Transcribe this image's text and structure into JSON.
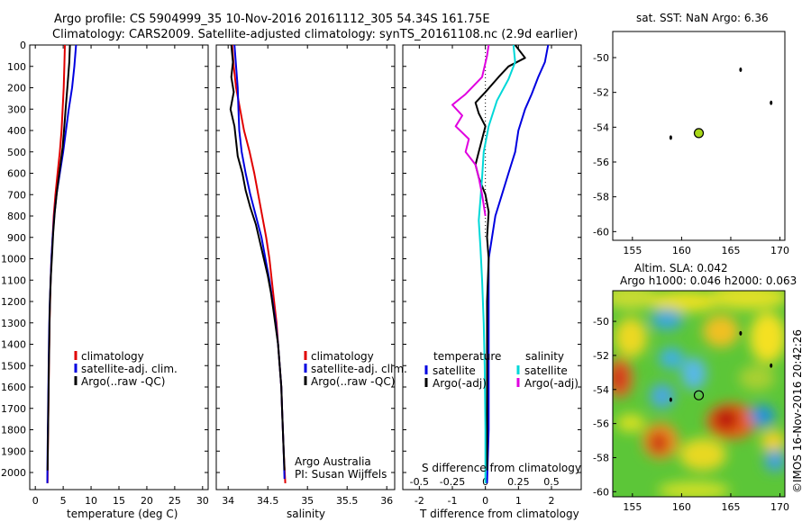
{
  "header": {
    "title_line1": "Argo profile: CS 5904999_35 10-Nov-2016 20161112_305 54.34S 161.75E",
    "title_line2": "Climatology: CARS2009. Satellite-adjusted climatology: synTS_20161108.nc (2.9d earlier)"
  },
  "credit": "©IMOS 16-Nov-2016 20:42:26",
  "colors": {
    "clim": "#e00000",
    "sat": "#0000e0",
    "argo": "#000000",
    "sat_s": "#00d8d8",
    "argo_s": "#e000e0",
    "marker": "#a8d818"
  },
  "chart_data": [
    {
      "type": "line",
      "xlabel": "temperature (deg C)",
      "ylabel": "",
      "xlim": [
        -1,
        31
      ],
      "ylim": [
        2080,
        0
      ],
      "xticks": [
        "0",
        "5",
        "10",
        "15",
        "20",
        "25",
        "30"
      ],
      "yticks": [
        "0",
        "100",
        "200",
        "300",
        "400",
        "500",
        "600",
        "700",
        "800",
        "900",
        "1000",
        "1100",
        "1200",
        "1300",
        "1400",
        "1500",
        "1600",
        "1700",
        "1800",
        "1900",
        "2000"
      ],
      "legend": [
        "climatology",
        "satellite-adj. clim.",
        "Argo(..raw -QC)"
      ],
      "series": [
        {
          "name": "climatology",
          "color": "#e00000",
          "points": [
            [
              5.3,
              0
            ],
            [
              5.2,
              100
            ],
            [
              5.1,
              200
            ],
            [
              4.9,
              300
            ],
            [
              4.7,
              400
            ],
            [
              4.4,
              500
            ],
            [
              4.0,
              600
            ],
            [
              3.6,
              700
            ],
            [
              3.3,
              800
            ],
            [
              3.1,
              900
            ],
            [
              2.9,
              1000
            ],
            [
              2.75,
              1100
            ],
            [
              2.65,
              1200
            ],
            [
              2.55,
              1300
            ],
            [
              2.5,
              1400
            ],
            [
              2.45,
              1500
            ],
            [
              2.4,
              1600
            ],
            [
              2.35,
              1700
            ],
            [
              2.3,
              1800
            ],
            [
              2.25,
              1900
            ],
            [
              2.2,
              2050
            ]
          ]
        },
        {
          "name": "satellite-adj. clim.",
          "color": "#0000e0",
          "points": [
            [
              7.3,
              0
            ],
            [
              7.0,
              100
            ],
            [
              6.6,
              200
            ],
            [
              6.0,
              300
            ],
            [
              5.5,
              400
            ],
            [
              5.0,
              500
            ],
            [
              4.4,
              600
            ],
            [
              3.8,
              700
            ],
            [
              3.4,
              800
            ],
            [
              3.1,
              900
            ],
            [
              2.9,
              1000
            ],
            [
              2.75,
              1100
            ],
            [
              2.6,
              1200
            ],
            [
              2.5,
              1300
            ],
            [
              2.45,
              1400
            ],
            [
              2.4,
              1500
            ],
            [
              2.35,
              1600
            ],
            [
              2.3,
              1700
            ],
            [
              2.25,
              1800
            ],
            [
              2.2,
              1900
            ],
            [
              2.15,
              2050
            ]
          ]
        },
        {
          "name": "Argo(..raw -QC)",
          "color": "#000000",
          "points": [
            [
              6.2,
              0
            ],
            [
              6.1,
              80
            ],
            [
              5.8,
              180
            ],
            [
              5.5,
              280
            ],
            [
              5.2,
              380
            ],
            [
              4.9,
              480
            ],
            [
              4.4,
              580
            ],
            [
              3.9,
              680
            ],
            [
              3.5,
              780
            ],
            [
              3.2,
              880
            ],
            [
              3.0,
              980
            ],
            [
              2.8,
              1080
            ],
            [
              2.65,
              1180
            ],
            [
              2.55,
              1280
            ],
            [
              2.5,
              1380
            ],
            [
              2.45,
              1480
            ],
            [
              2.4,
              1580
            ],
            [
              2.35,
              1680
            ],
            [
              2.3,
              1780
            ],
            [
              2.25,
              1880
            ],
            [
              2.2,
              1990
            ]
          ]
        }
      ]
    },
    {
      "type": "line",
      "xlabel": "salinity",
      "xlim": [
        33.85,
        36.1
      ],
      "ylim": [
        2080,
        0
      ],
      "xticks": [
        "34",
        "34.5",
        "35",
        "35.5",
        "36"
      ],
      "legend": [
        "climatology",
        "satellite-adj. clim.",
        "Argo(..raw -QC)"
      ],
      "annotation": [
        "Argo Australia",
        "PI: Susan Wijffels"
      ],
      "series": [
        {
          "name": "climatology",
          "color": "#e00000",
          "points": [
            [
              34.05,
              0
            ],
            [
              34.07,
              100
            ],
            [
              34.1,
              200
            ],
            [
              34.15,
              300
            ],
            [
              34.2,
              400
            ],
            [
              34.27,
              500
            ],
            [
              34.33,
              600
            ],
            [
              34.38,
              700
            ],
            [
              34.43,
              800
            ],
            [
              34.48,
              900
            ],
            [
              34.52,
              1000
            ],
            [
              34.55,
              1100
            ],
            [
              34.58,
              1200
            ],
            [
              34.61,
              1300
            ],
            [
              34.63,
              1400
            ],
            [
              34.65,
              1500
            ],
            [
              34.67,
              1600
            ],
            [
              34.68,
              1700
            ],
            [
              34.69,
              1800
            ],
            [
              34.7,
              1900
            ],
            [
              34.72,
              2050
            ]
          ]
        },
        {
          "name": "satellite-adj. clim.",
          "color": "#0000e0",
          "points": [
            [
              34.08,
              0
            ],
            [
              34.1,
              100
            ],
            [
              34.12,
              200
            ],
            [
              34.13,
              300
            ],
            [
              34.14,
              400
            ],
            [
              34.17,
              500
            ],
            [
              34.22,
              600
            ],
            [
              34.28,
              700
            ],
            [
              34.35,
              800
            ],
            [
              34.42,
              900
            ],
            [
              34.47,
              1000
            ],
            [
              34.52,
              1100
            ],
            [
              34.56,
              1200
            ],
            [
              34.6,
              1300
            ],
            [
              34.63,
              1400
            ],
            [
              34.65,
              1500
            ],
            [
              34.67,
              1600
            ],
            [
              34.68,
              1700
            ],
            [
              34.69,
              1800
            ],
            [
              34.7,
              1900
            ],
            [
              34.71,
              2030
            ]
          ]
        },
        {
          "name": "Argo(..raw -QC)",
          "color": "#000000",
          "points": [
            [
              34.04,
              0
            ],
            [
              34.06,
              80
            ],
            [
              34.04,
              150
            ],
            [
              34.07,
              220
            ],
            [
              34.03,
              300
            ],
            [
              34.08,
              380
            ],
            [
              34.1,
              450
            ],
            [
              34.12,
              520
            ],
            [
              34.18,
              600
            ],
            [
              34.22,
              680
            ],
            [
              34.28,
              760
            ],
            [
              34.35,
              840
            ],
            [
              34.4,
              920
            ],
            [
              34.45,
              1000
            ],
            [
              34.5,
              1080
            ],
            [
              34.54,
              1160
            ],
            [
              34.57,
              1240
            ],
            [
              34.6,
              1320
            ],
            [
              34.63,
              1400
            ],
            [
              34.65,
              1500
            ],
            [
              34.67,
              1600
            ],
            [
              34.68,
              1700
            ],
            [
              34.69,
              1800
            ],
            [
              34.7,
              1900
            ],
            [
              34.71,
              1990
            ]
          ]
        }
      ]
    },
    {
      "type": "line",
      "xlabel": "T difference from climatology",
      "x2label": "S difference from climatology",
      "xlim": [
        -2.5,
        2.9
      ],
      "ylim": [
        2080,
        0
      ],
      "xticks": [
        "-2",
        "-1",
        "0",
        "1",
        "2"
      ],
      "x2ticks": [
        "-0.5",
        "-0.25",
        "0",
        "0.25",
        "0.5"
      ],
      "legend": {
        "temperature": [
          "satellite",
          "Argo(-adj)"
        ],
        "salinity": [
          "satellite",
          "Argo(-adj)"
        ],
        "temperature_title": "temperature",
        "salinity_title": "salinity"
      },
      "series": [
        {
          "name": "satellite",
          "kind": "T",
          "color": "#0000e0",
          "points": [
            [
              1.9,
              0
            ],
            [
              1.8,
              80
            ],
            [
              1.6,
              150
            ],
            [
              1.4,
              230
            ],
            [
              1.2,
              300
            ],
            [
              1.0,
              400
            ],
            [
              0.9,
              500
            ],
            [
              0.7,
              600
            ],
            [
              0.5,
              700
            ],
            [
              0.3,
              800
            ],
            [
              0.2,
              900
            ],
            [
              0.1,
              1000
            ],
            [
              0.1,
              1200
            ],
            [
              0.1,
              1500
            ],
            [
              0.1,
              1800
            ],
            [
              0.05,
              2050
            ]
          ]
        },
        {
          "name": "Argo(-adj)",
          "kind": "T",
          "color": "#000000",
          "points": [
            [
              0.9,
              0
            ],
            [
              1.2,
              60
            ],
            [
              0.7,
              100
            ],
            [
              0.4,
              150
            ],
            [
              0.0,
              220
            ],
            [
              -0.3,
              270
            ],
            [
              -0.2,
              320
            ],
            [
              0.0,
              380
            ],
            [
              -0.1,
              440
            ],
            [
              -0.2,
              500
            ],
            [
              -0.3,
              560
            ],
            [
              -0.2,
              620
            ],
            [
              0.0,
              700
            ],
            [
              0.1,
              780
            ],
            [
              0.05,
              900
            ],
            [
              0.1,
              1000
            ],
            [
              0.05,
              1200
            ],
            [
              0.05,
              1500
            ],
            [
              0.05,
              1800
            ],
            [
              0.05,
              1990
            ]
          ]
        },
        {
          "name": "satellite",
          "kind": "S",
          "color": "#00d8d8",
          "points": [
            [
              0.85,
              0
            ],
            [
              0.9,
              80
            ],
            [
              0.7,
              160
            ],
            [
              0.35,
              260
            ],
            [
              0.1,
              380
            ],
            [
              -0.05,
              500
            ],
            [
              -0.1,
              620
            ],
            [
              -0.15,
              720
            ],
            [
              -0.2,
              820
            ],
            [
              -0.15,
              950
            ],
            [
              -0.1,
              1100
            ],
            [
              -0.05,
              1300
            ],
            [
              -0.02,
              1500
            ],
            [
              0.0,
              1800
            ],
            [
              0.0,
              2050
            ]
          ]
        },
        {
          "name": "Argo(-adj)",
          "kind": "S",
          "color": "#e000e0",
          "points": [
            [
              0.1,
              0
            ],
            [
              0.05,
              50
            ],
            [
              -0.1,
              150
            ],
            [
              -0.6,
              230
            ],
            [
              -1.0,
              280
            ],
            [
              -0.7,
              330
            ],
            [
              -0.9,
              380
            ],
            [
              -0.5,
              440
            ],
            [
              -0.6,
              500
            ],
            [
              -0.3,
              560
            ],
            [
              -0.2,
              620
            ],
            [
              -0.1,
              700
            ],
            [
              0.0,
              800
            ]
          ]
        }
      ]
    }
  ],
  "map_sst": {
    "title": "sat. SST: NaN Argo: 6.36",
    "xticks": [
      "155",
      "160",
      "165",
      "170"
    ],
    "yticks": [
      "-50",
      "-52",
      "-54",
      "-56",
      "-58",
      "-60"
    ],
    "xlim": [
      153,
      170.5
    ],
    "ylim": [
      -60.5,
      -48.5
    ],
    "profile": {
      "lon": 161.75,
      "lat": -54.34
    }
  },
  "map_sla": {
    "title_line1": "Altim. SLA: 0.042",
    "title_line2": "Argo h1000: 0.046 h2000: 0.063",
    "xticks": [
      "155",
      "160",
      "165",
      "170"
    ],
    "yticks": [
      "-50",
      "-52",
      "-54",
      "-56",
      "-58",
      "-60"
    ],
    "xlim": [
      153,
      170.5
    ],
    "ylim": [
      -60.3,
      -48.2
    ],
    "profile": {
      "lon": 161.75,
      "lat": -54.34
    }
  }
}
